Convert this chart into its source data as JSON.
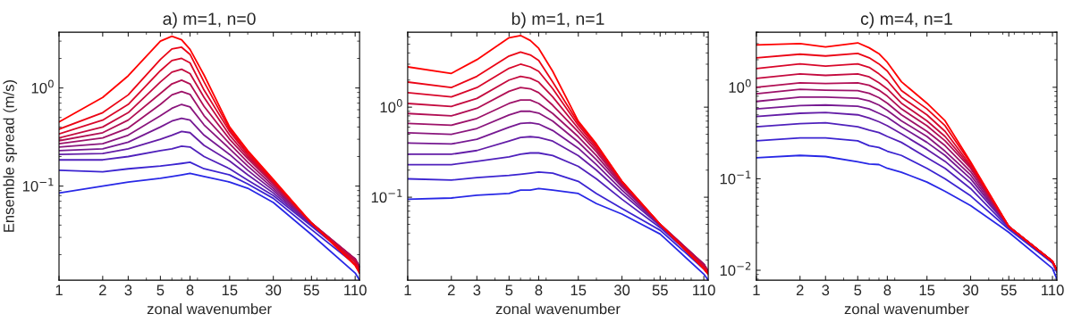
{
  "chart_data": [
    {
      "type": "line",
      "title": "a) m=1, n=0",
      "xlabel": "zonal wavenumber",
      "ylabel": "Ensemble spread (m/s)",
      "log": "xy",
      "grid": false,
      "legend": false,
      "marker": "none",
      "line_style": "solid",
      "x": [
        1,
        2,
        3,
        5,
        6,
        7,
        8,
        10,
        15,
        20,
        30,
        55,
        110,
        118
      ],
      "xlim": [
        1,
        118
      ],
      "xticks": [
        1,
        2,
        3,
        5,
        8,
        15,
        30,
        55,
        110
      ],
      "ylim": [
        0.011,
        3.7
      ],
      "yticks": [
        {
          "value": 0.1,
          "label": "10$^{−1}$"
        },
        {
          "value": 1,
          "label": "10$^{0}$"
        }
      ],
      "series": [
        {
          "color": "#2828e6",
          "values": [
            0.085,
            0.1,
            0.11,
            0.12,
            0.125,
            0.13,
            0.135,
            0.125,
            0.11,
            0.095,
            0.068,
            0.032,
            0.013,
            0.011
          ]
        },
        {
          "color": "#3b24d1",
          "values": [
            0.145,
            0.14,
            0.15,
            0.16,
            0.165,
            0.17,
            0.175,
            0.15,
            0.13,
            0.105,
            0.075,
            0.036,
            0.016,
            0.013
          ]
        },
        {
          "color": "#4f21bc",
          "values": [
            0.185,
            0.185,
            0.2,
            0.23,
            0.24,
            0.255,
            0.25,
            0.2,
            0.15,
            0.115,
            0.08,
            0.039,
            0.017,
            0.014
          ]
        },
        {
          "color": "#631da7",
          "values": [
            0.21,
            0.215,
            0.24,
            0.3,
            0.33,
            0.36,
            0.35,
            0.26,
            0.18,
            0.13,
            0.085,
            0.04,
            0.018,
            0.015
          ]
        },
        {
          "color": "#761992",
          "values": [
            0.23,
            0.24,
            0.28,
            0.4,
            0.46,
            0.49,
            0.47,
            0.33,
            0.21,
            0.145,
            0.09,
            0.041,
            0.018,
            0.015
          ]
        },
        {
          "color": "#8a167d",
          "values": [
            0.25,
            0.27,
            0.33,
            0.52,
            0.62,
            0.68,
            0.64,
            0.42,
            0.24,
            0.16,
            0.095,
            0.042,
            0.018,
            0.015
          ]
        },
        {
          "color": "#9d1269",
          "values": [
            0.27,
            0.31,
            0.39,
            0.68,
            0.85,
            0.92,
            0.86,
            0.52,
            0.27,
            0.175,
            0.1,
            0.042,
            0.018,
            0.015
          ]
        },
        {
          "color": "#b10f54",
          "values": [
            0.29,
            0.35,
            0.47,
            0.88,
            1.1,
            1.2,
            1.1,
            0.65,
            0.3,
            0.19,
            0.105,
            0.042,
            0.018,
            0.015
          ]
        },
        {
          "color": "#c40b3f",
          "values": [
            0.31,
            0.4,
            0.56,
            1.15,
            1.45,
            1.55,
            1.4,
            0.8,
            0.33,
            0.2,
            0.108,
            0.042,
            0.017,
            0.014
          ]
        },
        {
          "color": "#d8072a",
          "values": [
            0.34,
            0.47,
            0.68,
            1.5,
            1.9,
            2.0,
            1.8,
            0.95,
            0.36,
            0.21,
            0.11,
            0.042,
            0.017,
            0.014
          ]
        },
        {
          "color": "#eb0415",
          "values": [
            0.38,
            0.56,
            0.85,
            1.95,
            2.5,
            2.6,
            2.2,
            1.15,
            0.38,
            0.22,
            0.113,
            0.042,
            0.016,
            0.013
          ]
        },
        {
          "color": "#ff0000",
          "values": [
            0.45,
            0.8,
            1.33,
            3.0,
            3.37,
            3.1,
            2.47,
            1.35,
            0.4,
            0.23,
            0.117,
            0.042,
            0.0155,
            0.013
          ]
        }
      ]
    },
    {
      "type": "line",
      "title": "b) m=1, n=1",
      "xlabel": "zonal wavenumber",
      "log": "xy",
      "grid": false,
      "legend": false,
      "marker": "none",
      "line_style": "solid",
      "x": [
        1,
        2,
        3,
        5,
        6,
        7,
        8,
        10,
        15,
        20,
        30,
        55,
        110,
        118
      ],
      "xlim": [
        1,
        118
      ],
      "xticks": [
        1,
        2,
        3,
        5,
        8,
        15,
        30,
        55,
        110
      ],
      "ylim": [
        0.012,
        6.8
      ],
      "yticks": [
        {
          "value": 0.1,
          "label": "10$^{−1}$"
        },
        {
          "value": 1,
          "label": "10$^{0}$"
        }
      ],
      "series": [
        {
          "color": "#2828e6",
          "values": [
            0.095,
            0.098,
            0.105,
            0.11,
            0.12,
            0.12,
            0.125,
            0.12,
            0.11,
            0.085,
            0.065,
            0.039,
            0.014,
            0.012
          ]
        },
        {
          "color": "#3b24d1",
          "values": [
            0.16,
            0.155,
            0.165,
            0.175,
            0.18,
            0.185,
            0.19,
            0.185,
            0.15,
            0.11,
            0.075,
            0.043,
            0.016,
            0.014
          ]
        },
        {
          "color": "#4f21bc",
          "values": [
            0.23,
            0.23,
            0.25,
            0.28,
            0.3,
            0.31,
            0.31,
            0.29,
            0.22,
            0.16,
            0.095,
            0.046,
            0.017,
            0.015
          ]
        },
        {
          "color": "#631da7",
          "values": [
            0.3,
            0.3,
            0.33,
            0.42,
            0.46,
            0.47,
            0.46,
            0.42,
            0.29,
            0.2,
            0.11,
            0.048,
            0.018,
            0.015
          ]
        },
        {
          "color": "#761992",
          "values": [
            0.4,
            0.39,
            0.44,
            0.6,
            0.66,
            0.67,
            0.65,
            0.55,
            0.35,
            0.23,
            0.12,
            0.049,
            0.018,
            0.015
          ]
        },
        {
          "color": "#8a167d",
          "values": [
            0.52,
            0.5,
            0.58,
            0.82,
            0.9,
            0.9,
            0.86,
            0.7,
            0.41,
            0.26,
            0.13,
            0.05,
            0.018,
            0.015
          ]
        },
        {
          "color": "#9d1269",
          "values": [
            0.66,
            0.63,
            0.75,
            1.1,
            1.2,
            1.2,
            1.1,
            0.85,
            0.47,
            0.29,
            0.135,
            0.05,
            0.018,
            0.015
          ]
        },
        {
          "color": "#b10f54",
          "values": [
            0.85,
            0.8,
            0.97,
            1.5,
            1.65,
            1.6,
            1.45,
            1.05,
            0.53,
            0.32,
            0.14,
            0.05,
            0.018,
            0.015
          ]
        },
        {
          "color": "#c40b3f",
          "values": [
            1.1,
            1.02,
            1.25,
            2.0,
            2.2,
            2.1,
            1.9,
            1.3,
            0.58,
            0.34,
            0.145,
            0.05,
            0.017,
            0.015
          ]
        },
        {
          "color": "#d8072a",
          "values": [
            1.45,
            1.3,
            1.65,
            2.7,
            3.0,
            2.8,
            2.5,
            1.6,
            0.63,
            0.36,
            0.148,
            0.05,
            0.017,
            0.014
          ]
        },
        {
          "color": "#eb0415",
          "values": [
            1.9,
            1.65,
            2.2,
            3.7,
            4.1,
            3.8,
            3.3,
            1.9,
            0.67,
            0.38,
            0.15,
            0.05,
            0.016,
            0.014
          ]
        },
        {
          "color": "#ff0000",
          "values": [
            2.8,
            2.37,
            3.37,
            5.9,
            6.25,
            5.5,
            4.5,
            2.5,
            0.7,
            0.39,
            0.15,
            0.05,
            0.016,
            0.014
          ]
        }
      ]
    },
    {
      "type": "line",
      "title": "c) m=4, n=1",
      "xlabel": "zonal wavenumber",
      "log": "xy",
      "grid": false,
      "legend": false,
      "marker": "none",
      "line_style": "solid",
      "x": [
        1,
        2,
        3,
        5,
        6,
        7,
        8,
        10,
        15,
        20,
        30,
        55,
        110,
        118
      ],
      "xlim": [
        1,
        118
      ],
      "xticks": [
        1,
        2,
        3,
        5,
        8,
        15,
        30,
        55,
        110
      ],
      "ylim": [
        0.0078,
        4
      ],
      "yticks": [
        {
          "value": 0.01,
          "label": "10$^{−2}$"
        },
        {
          "value": 0.1,
          "label": "10$^{−1}$"
        },
        {
          "value": 1,
          "label": "10$^{0}$"
        }
      ],
      "series": [
        {
          "color": "#2828e6",
          "values": [
            0.17,
            0.18,
            0.175,
            0.153,
            0.145,
            0.143,
            0.13,
            0.118,
            0.092,
            0.073,
            0.051,
            0.026,
            0.0105,
            0.008
          ]
        },
        {
          "color": "#3b24d1",
          "values": [
            0.26,
            0.28,
            0.28,
            0.26,
            0.23,
            0.22,
            0.2,
            0.18,
            0.13,
            0.1,
            0.065,
            0.028,
            0.012,
            0.0095
          ]
        },
        {
          "color": "#4f21bc",
          "values": [
            0.37,
            0.4,
            0.41,
            0.37,
            0.34,
            0.32,
            0.29,
            0.25,
            0.17,
            0.13,
            0.078,
            0.029,
            0.012,
            0.01
          ]
        },
        {
          "color": "#631da7",
          "values": [
            0.48,
            0.52,
            0.53,
            0.5,
            0.46,
            0.42,
            0.38,
            0.31,
            0.21,
            0.155,
            0.09,
            0.03,
            0.0125,
            0.01
          ]
        },
        {
          "color": "#761992",
          "values": [
            0.58,
            0.63,
            0.64,
            0.62,
            0.58,
            0.52,
            0.47,
            0.37,
            0.25,
            0.18,
            0.1,
            0.03,
            0.0125,
            0.01
          ]
        },
        {
          "color": "#8a167d",
          "values": [
            0.7,
            0.78,
            0.78,
            0.76,
            0.71,
            0.64,
            0.56,
            0.43,
            0.29,
            0.2,
            0.11,
            0.03,
            0.0125,
            0.01
          ]
        },
        {
          "color": "#9d1269",
          "values": [
            0.85,
            0.95,
            0.93,
            0.92,
            0.86,
            0.77,
            0.67,
            0.5,
            0.33,
            0.23,
            0.12,
            0.03,
            0.0125,
            0.01
          ]
        },
        {
          "color": "#b10f54",
          "values": [
            1.0,
            1.12,
            1.1,
            1.12,
            1.05,
            0.93,
            0.8,
            0.58,
            0.38,
            0.26,
            0.13,
            0.03,
            0.0125,
            0.01
          ]
        },
        {
          "color": "#c40b3f",
          "values": [
            1.25,
            1.4,
            1.35,
            1.4,
            1.3,
            1.12,
            0.96,
            0.67,
            0.43,
            0.29,
            0.135,
            0.03,
            0.0125,
            0.01
          ]
        },
        {
          "color": "#d8072a",
          "values": [
            1.6,
            1.8,
            1.7,
            1.8,
            1.65,
            1.4,
            1.18,
            0.78,
            0.5,
            0.33,
            0.14,
            0.03,
            0.0125,
            0.01
          ]
        },
        {
          "color": "#eb0415",
          "values": [
            2.1,
            2.3,
            2.2,
            2.35,
            2.1,
            1.8,
            1.5,
            0.92,
            0.58,
            0.38,
            0.148,
            0.03,
            0.0125,
            0.01
          ]
        },
        {
          "color": "#ff0000",
          "values": [
            2.9,
            3.0,
            2.76,
            3.06,
            2.7,
            2.33,
            1.87,
            1.15,
            0.67,
            0.43,
            0.153,
            0.03,
            0.0125,
            0.01
          ]
        }
      ]
    }
  ]
}
